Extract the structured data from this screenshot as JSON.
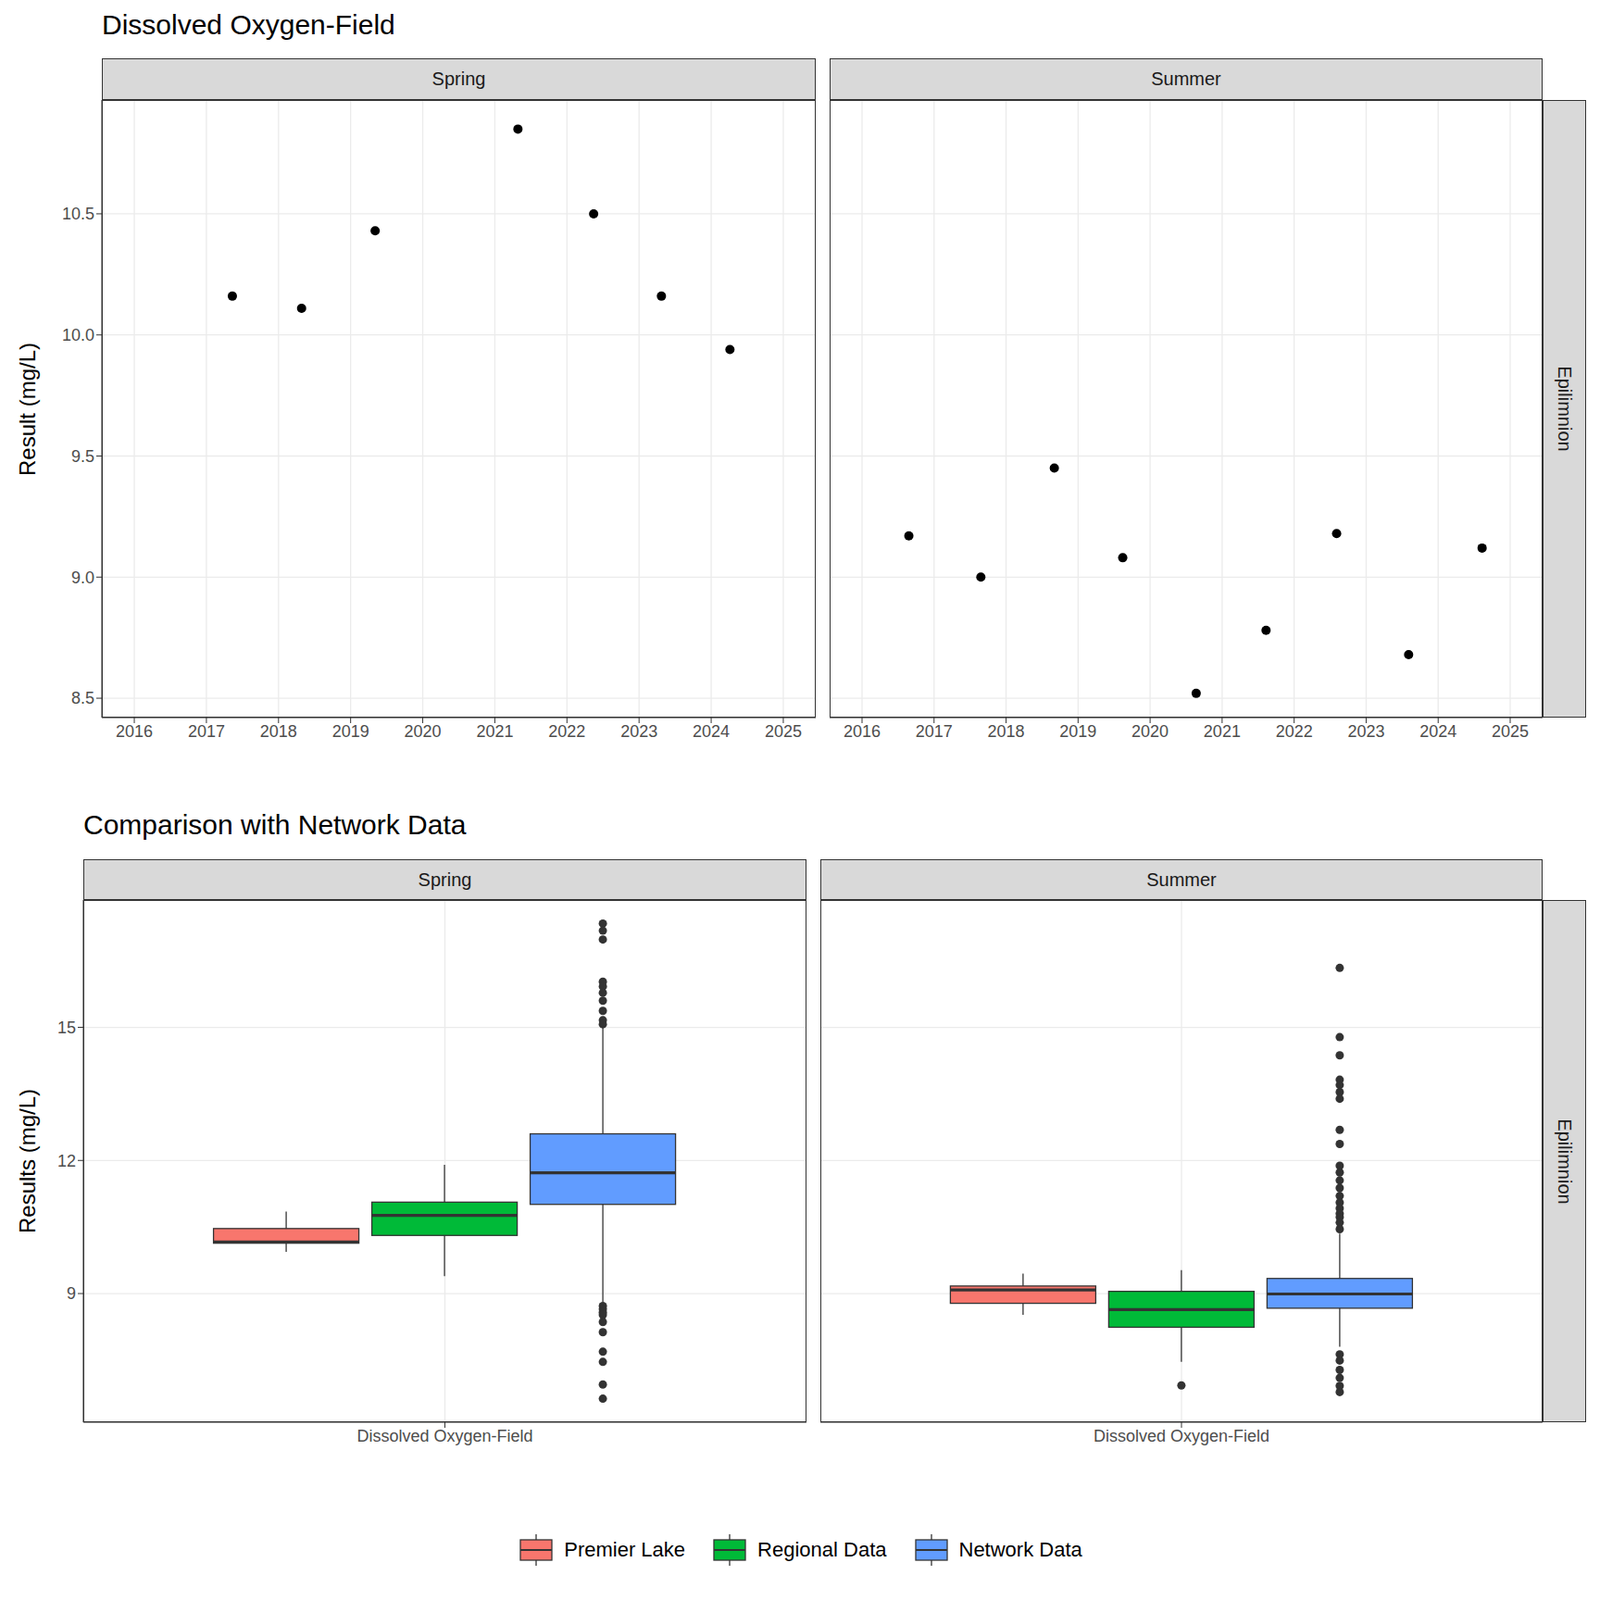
{
  "chart_data": [
    {
      "type": "scatter",
      "title": "Dissolved Oxygen-Field",
      "y_label": "Result (mg/L)",
      "strip_label": "Epilimnion",
      "marker": "circle",
      "color": "#000000",
      "grid": true,
      "xlim": [
        2015.55,
        2025.45
      ],
      "xticks": [
        2016,
        2017,
        2018,
        2019,
        2020,
        2021,
        2022,
        2023,
        2024,
        2025
      ],
      "ylim": [
        8.42,
        10.97
      ],
      "yticks": [
        8.5,
        {
          "value": 9,
          "label": "9.0"
        },
        9.5,
        {
          "value": 10,
          "label": "10.0"
        },
        10.5
      ],
      "panels": [
        {
          "name": "Spring",
          "x": [
            2017.36,
            2018.32,
            2019.34,
            2021.32,
            2022.37,
            2023.31,
            2024.26
          ],
          "values": [
            10.16,
            10.11,
            10.43,
            10.85,
            10.5,
            10.16,
            9.94
          ]
        },
        {
          "name": "Summer",
          "x": [
            2016.65,
            2017.65,
            2018.67,
            2019.62,
            2020.64,
            2021.61,
            2022.59,
            2023.59,
            2024.61
          ],
          "values": [
            9.17,
            9.0,
            9.45,
            9.08,
            8.52,
            8.78,
            9.18,
            8.68,
            9.12
          ]
        }
      ]
    },
    {
      "type": "box",
      "title": "Comparison with Network Data",
      "y_label": "Results (mg/L)",
      "strip_label": "Epilimnion",
      "grid": true,
      "legend": "bottom",
      "categories": [
        "Dissolved Oxygen-Field"
      ],
      "ylim": [
        6.1,
        17.87
      ],
      "yticks": [
        9,
        12,
        15
      ],
      "series": [
        {
          "name": "Premier Lake",
          "color": "#F8766D"
        },
        {
          "name": "Regional Data",
          "color": "#00BA38"
        },
        {
          "name": "Network Data",
          "color": "#619CFF"
        }
      ],
      "panels": [
        {
          "name": "Spring",
          "boxes": [
            {
              "min": 9.94,
              "q1": 10.135,
              "median": 10.16,
              "q3": 10.465,
              "max": 10.85,
              "outliers": []
            },
            {
              "min": 9.39,
              "q1": 10.31,
              "median": 10.76,
              "q3": 11.06,
              "max": 11.9,
              "outliers": []
            },
            {
              "min": 8.8,
              "q1": 11.01,
              "median": 11.72,
              "q3": 12.6,
              "max": 15.0,
              "outliers": [
                17.34,
                17.18,
                16.98,
                16.03,
                15.92,
                15.78,
                15.6,
                15.37,
                15.16,
                15.07,
                8.72,
                8.65,
                8.58,
                8.52,
                8.36,
                8.13,
                7.69,
                7.46,
                6.95,
                6.63
              ]
            }
          ]
        },
        {
          "name": "Summer",
          "boxes": [
            {
              "min": 8.52,
              "q1": 8.78,
              "median": 9.08,
              "q3": 9.17,
              "max": 9.45,
              "outliers": []
            },
            {
              "min": 7.46,
              "q1": 8.24,
              "median": 8.64,
              "q3": 9.05,
              "max": 9.53,
              "outliers": [
                6.93
              ]
            },
            {
              "min": 7.8,
              "q1": 8.67,
              "median": 8.99,
              "q3": 9.34,
              "max": 10.35,
              "outliers": [
                16.34,
                14.78,
                14.37,
                13.82,
                13.7,
                13.54,
                13.39,
                12.69,
                12.37,
                11.88,
                11.73,
                11.55,
                11.38,
                11.2,
                11.05,
                10.92,
                10.8,
                10.72,
                10.6,
                10.45,
                7.63,
                7.49,
                7.28,
                7.1,
                6.92,
                6.78
              ]
            }
          ]
        }
      ]
    }
  ]
}
